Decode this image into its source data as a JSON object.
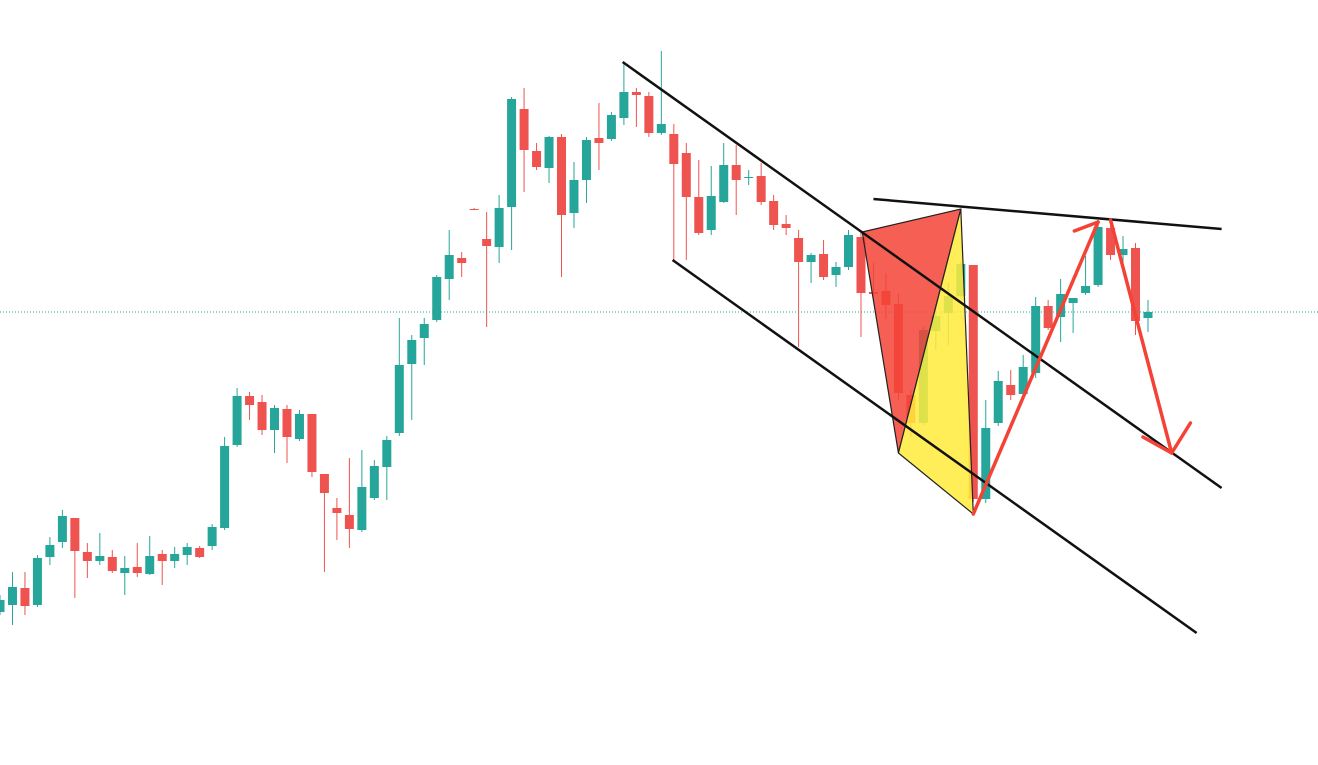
{
  "chart_data": {
    "type": "candlestick",
    "title": "",
    "xlabel": "",
    "ylabel": "",
    "grid": false,
    "legend": "none",
    "colors": {
      "up": "#26a69a",
      "down": "#ef5350",
      "last_price_line": "#26a69a",
      "trendline": "#111111",
      "pattern_red": "#f44336",
      "pattern_yellow": "#ffeb3b",
      "arrow": "#f44336"
    },
    "candles": [
      {
        "o": 153,
        "h": 170,
        "l": 150,
        "c": 165
      },
      {
        "o": 160,
        "h": 193,
        "l": 140,
        "c": 178
      },
      {
        "o": 177,
        "h": 193,
        "l": 150,
        "c": 159
      },
      {
        "o": 160,
        "h": 210,
        "l": 158,
        "c": 207
      },
      {
        "o": 208,
        "h": 228,
        "l": 200,
        "c": 220
      },
      {
        "o": 223,
        "h": 255,
        "l": 217,
        "c": 249
      },
      {
        "o": 247,
        "h": 247,
        "l": 167,
        "c": 214
      },
      {
        "o": 213,
        "h": 222,
        "l": 187,
        "c": 204
      },
      {
        "o": 204,
        "h": 232,
        "l": 200,
        "c": 209
      },
      {
        "o": 208,
        "h": 215,
        "l": 192,
        "c": 194
      },
      {
        "o": 192,
        "h": 209,
        "l": 170,
        "c": 197
      },
      {
        "o": 198,
        "h": 222,
        "l": 188,
        "c": 192
      },
      {
        "o": 191,
        "h": 229,
        "l": 190,
        "c": 209
      },
      {
        "o": 211,
        "h": 215,
        "l": 180,
        "c": 204
      },
      {
        "o": 204,
        "h": 218,
        "l": 197,
        "c": 211
      },
      {
        "o": 210,
        "h": 222,
        "l": 200,
        "c": 218
      },
      {
        "o": 217,
        "h": 219,
        "l": 207,
        "c": 208
      },
      {
        "o": 219,
        "h": 241,
        "l": 215,
        "c": 238
      },
      {
        "o": 237,
        "h": 328,
        "l": 235,
        "c": 319
      },
      {
        "o": 320,
        "h": 377,
        "l": 318,
        "c": 369
      },
      {
        "o": 369,
        "h": 373,
        "l": 345,
        "c": 360
      },
      {
        "o": 363,
        "h": 370,
        "l": 330,
        "c": 335
      },
      {
        "o": 335,
        "h": 360,
        "l": 312,
        "c": 357
      },
      {
        "o": 356,
        "h": 360,
        "l": 302,
        "c": 328
      },
      {
        "o": 326,
        "h": 355,
        "l": 324,
        "c": 351
      },
      {
        "o": 351,
        "h": 351,
        "l": 288,
        "c": 293
      },
      {
        "o": 291,
        "h": 291,
        "l": 193,
        "c": 272
      },
      {
        "o": 257,
        "h": 267,
        "l": 225,
        "c": 252
      },
      {
        "o": 250,
        "h": 307,
        "l": 217,
        "c": 236
      },
      {
        "o": 235,
        "h": 315,
        "l": 233,
        "c": 278
      },
      {
        "o": 267,
        "h": 305,
        "l": 265,
        "c": 299
      },
      {
        "o": 298,
        "h": 329,
        "l": 265,
        "c": 325
      },
      {
        "o": 332,
        "h": 447,
        "l": 329,
        "c": 400
      },
      {
        "o": 401,
        "h": 430,
        "l": 345,
        "c": 425
      },
      {
        "o": 427,
        "h": 447,
        "l": 400,
        "c": 441
      },
      {
        "o": 445,
        "h": 490,
        "l": 443,
        "c": 488
      },
      {
        "o": 486,
        "h": 535,
        "l": 465,
        "c": 510
      },
      {
        "o": 507,
        "h": 513,
        "l": 488,
        "c": 502
      },
      {
        "o": 556,
        "h": 557,
        "l": 555,
        "c": 555
      },
      {
        "o": 526,
        "h": 553,
        "l": 438,
        "c": 519
      },
      {
        "o": 518,
        "h": 570,
        "l": 502,
        "c": 557
      },
      {
        "o": 558,
        "h": 668,
        "l": 515,
        "c": 666
      },
      {
        "o": 656,
        "h": 677,
        "l": 573,
        "c": 615
      },
      {
        "o": 614,
        "h": 622,
        "l": 595,
        "c": 598
      },
      {
        "o": 597,
        "h": 629,
        "l": 582,
        "c": 628
      },
      {
        "o": 628,
        "h": 631,
        "l": 488,
        "c": 550
      },
      {
        "o": 552,
        "h": 603,
        "l": 537,
        "c": 585
      },
      {
        "o": 585,
        "h": 628,
        "l": 562,
        "c": 625
      },
      {
        "o": 627,
        "h": 662,
        "l": 595,
        "c": 622
      },
      {
        "o": 626,
        "h": 653,
        "l": 624,
        "c": 650
      },
      {
        "o": 647,
        "h": 702,
        "l": 640,
        "c": 673
      },
      {
        "o": 673,
        "h": 677,
        "l": 638,
        "c": 670
      },
      {
        "o": 669,
        "h": 673,
        "l": 628,
        "c": 632
      },
      {
        "o": 632,
        "h": 714,
        "l": 630,
        "c": 641
      },
      {
        "o": 631,
        "h": 641,
        "l": 505,
        "c": 601
      },
      {
        "o": 612,
        "h": 622,
        "l": 505,
        "c": 568
      },
      {
        "o": 568,
        "h": 605,
        "l": 530,
        "c": 532
      },
      {
        "o": 535,
        "h": 599,
        "l": 530,
        "c": 569
      },
      {
        "o": 563,
        "h": 622,
        "l": 562,
        "c": 600
      },
      {
        "o": 600,
        "h": 620,
        "l": 550,
        "c": 585
      },
      {
        "o": 587,
        "h": 595,
        "l": 580,
        "c": 588
      },
      {
        "o": 589,
        "h": 602,
        "l": 560,
        "c": 563
      },
      {
        "o": 564,
        "h": 570,
        "l": 535,
        "c": 540
      },
      {
        "o": 541,
        "h": 550,
        "l": 530,
        "c": 537
      },
      {
        "o": 527,
        "h": 535,
        "l": 418,
        "c": 503
      },
      {
        "o": 503,
        "h": 512,
        "l": 482,
        "c": 510
      },
      {
        "o": 511,
        "h": 525,
        "l": 485,
        "c": 488
      },
      {
        "o": 490,
        "h": 503,
        "l": 478,
        "c": 498
      },
      {
        "o": 498,
        "h": 535,
        "l": 495,
        "c": 530
      },
      {
        "o": 528,
        "h": 535,
        "l": 428,
        "c": 472
      },
      {
        "o": 473,
        "h": 502,
        "l": 465,
        "c": 471
      },
      {
        "o": 474,
        "h": 492,
        "l": 446,
        "c": 460
      },
      {
        "o": 461,
        "h": 472,
        "l": 365,
        "c": 372
      },
      {
        "o": 370,
        "h": 375,
        "l": 328,
        "c": 342
      },
      {
        "o": 342,
        "h": 438,
        "l": 340,
        "c": 435
      },
      {
        "o": 434,
        "h": 460,
        "l": 415,
        "c": 449
      },
      {
        "o": 452,
        "h": 482,
        "l": 420,
        "c": 469
      },
      {
        "o": 469,
        "h": 503,
        "l": 467,
        "c": 501
      },
      {
        "o": 500,
        "h": 500,
        "l": 263,
        "c": 266
      },
      {
        "o": 266,
        "h": 365,
        "l": 262,
        "c": 337
      },
      {
        "o": 342,
        "h": 394,
        "l": 339,
        "c": 384
      },
      {
        "o": 380,
        "h": 395,
        "l": 365,
        "c": 370
      },
      {
        "o": 371,
        "h": 410,
        "l": 369,
        "c": 398
      },
      {
        "o": 392,
        "h": 468,
        "l": 387,
        "c": 459
      },
      {
        "o": 459,
        "h": 465,
        "l": 435,
        "c": 437
      },
      {
        "o": 448,
        "h": 486,
        "l": 423,
        "c": 471
      },
      {
        "o": 462,
        "h": 467,
        "l": 432,
        "c": 467
      },
      {
        "o": 472,
        "h": 509,
        "l": 470,
        "c": 479
      },
      {
        "o": 480,
        "h": 545,
        "l": 478,
        "c": 538
      },
      {
        "o": 537,
        "h": 540,
        "l": 505,
        "c": 510
      },
      {
        "o": 510,
        "h": 529,
        "l": 493,
        "c": 516
      },
      {
        "o": 517,
        "h": 522,
        "l": 430,
        "c": 444
      },
      {
        "o": 447,
        "h": 465,
        "l": 433,
        "c": 453
      }
    ],
    "last_price": 453,
    "annotations": {
      "trendlines": [
        {
          "name": "channel-upper",
          "points": [
            [
              49.9,
              703
            ],
            [
              97.9,
              277
            ]
          ]
        },
        {
          "name": "channel-lower",
          "points": [
            [
              53.9,
              505
            ],
            [
              95.9,
              132
            ]
          ]
        },
        {
          "name": "resistance",
          "points": [
            [
              70,
              566
            ],
            [
              97.9,
              536
            ]
          ]
        }
      ],
      "pattern_triangles": [
        {
          "name": "red-triangle",
          "color": "#f44336",
          "points": [
            [
              69.1,
              533
            ],
            [
              77,
              556
            ],
            [
              72,
              312
            ]
          ]
        },
        {
          "name": "yellow-triangle",
          "color": "#ffeb3b",
          "points": [
            [
              72,
              312
            ],
            [
              77,
              556
            ],
            [
              78,
              251
            ]
          ]
        }
      ],
      "arrows": [
        {
          "name": "arrow-up",
          "points": [
            [
              78,
              251
            ],
            [
              88,
              543
            ]
          ],
          "head": [
            [
              86.1,
              534
            ],
            [
              88,
              543
            ]
          ]
        },
        {
          "name": "arrow-down",
          "points": [
            [
              89,
              545
            ],
            [
              93.9,
              312
            ]
          ],
          "head": [
            [
              91.6,
              328
            ],
            [
              93.9,
              312
            ],
            [
              95.4,
              342
            ]
          ]
        }
      ]
    }
  }
}
